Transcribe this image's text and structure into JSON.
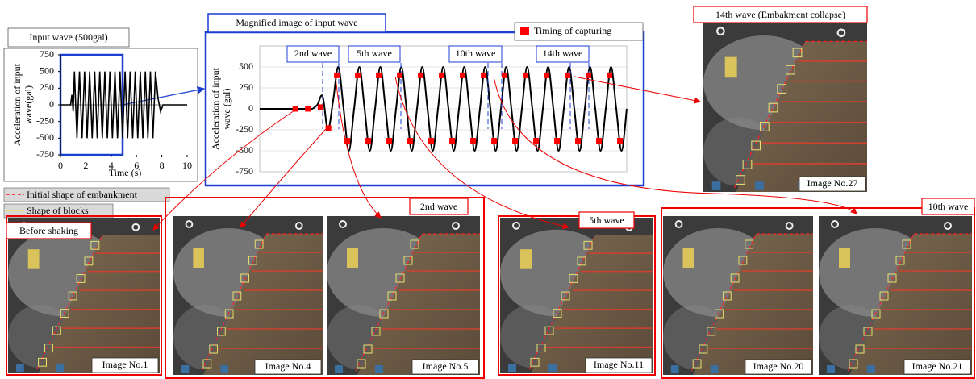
{
  "input_chart": {
    "type": "line",
    "title": "Input wave (500gal)",
    "xlabel": "Time (s)",
    "ylabel": [
      "Acceleration of input",
      "wave(gal)"
    ],
    "xlim": [
      0,
      10
    ],
    "xticks": [
      0,
      2,
      4,
      6,
      8,
      10
    ],
    "ylim": [
      -750,
      750
    ],
    "yticks": [
      -750,
      -500,
      -250,
      0,
      250,
      500,
      750
    ],
    "color": "#000000",
    "x": [
      0,
      0.8,
      0.9,
      1.0,
      1.1,
      1.3,
      1.5,
      1.7,
      1.9,
      2.1,
      2.3,
      2.5,
      2.7,
      2.9,
      3.1,
      3.3,
      3.5,
      3.7,
      3.9,
      4.1,
      4.3,
      4.5,
      4.7,
      4.9,
      5.1,
      5.3,
      5.5,
      5.7,
      5.9,
      6.1,
      6.3,
      6.5,
      6.7,
      6.9,
      7.1,
      7.3,
      7.5,
      7.7,
      7.9,
      8.1,
      10
    ],
    "values": [
      0,
      0,
      150,
      -100,
      500,
      -500,
      500,
      -500,
      500,
      -500,
      500,
      -500,
      500,
      -500,
      500,
      -500,
      500,
      -500,
      500,
      -500,
      500,
      -500,
      500,
      -500,
      500,
      -500,
      500,
      -500,
      500,
      -500,
      500,
      -500,
      500,
      -500,
      500,
      -500,
      500,
      100,
      -100,
      0,
      0
    ]
  },
  "magnified_chart": {
    "type": "line",
    "title": "Magnified image of input wave",
    "ylabel": [
      "Acceleration of input",
      "wave (gal)"
    ],
    "ylim": [
      -750,
      750
    ],
    "yticks": [
      -750,
      -500,
      -250,
      0,
      250,
      500
    ],
    "color": "#000000",
    "values": [
      0,
      0,
      0,
      0,
      0,
      0,
      0,
      0,
      0,
      0,
      0,
      50,
      150,
      -250,
      100,
      500,
      0,
      -500,
      0,
      500,
      0,
      -500,
      0,
      500,
      0,
      -500,
      0,
      500,
      0,
      -500,
      0,
      500,
      0,
      -500,
      0,
      500,
      0,
      -500,
      0,
      500,
      0,
      -500,
      0,
      500,
      0,
      -500,
      0,
      500,
      0,
      -500,
      0,
      500,
      0,
      -500,
      0,
      500,
      0,
      -500,
      0,
      500,
      0,
      -500,
      0,
      500,
      0,
      -500,
      0,
      500,
      0,
      -500,
      0
    ],
    "captures": {
      "name": "Timing of capturing",
      "color": "#ff0000",
      "x": [
        6.8,
        9.2,
        11.6,
        13.1,
        14.7,
        16.7,
        18.7,
        20.7,
        22.7,
        24.7,
        26.7,
        28.7,
        30.7,
        32.7,
        34.7,
        36.7,
        38.7,
        40.7,
        42.7,
        44.7,
        46.7,
        48.7,
        50.7,
        52.7,
        54.7,
        56.7,
        58.7,
        60.7,
        62.7,
        64.7,
        66.7,
        68.7
      ],
      "values": [
        0,
        0,
        20,
        -230,
        400,
        -380,
        400,
        -380,
        400,
        -380,
        400,
        -380,
        400,
        -380,
        400,
        -380,
        400,
        -380,
        400,
        -380,
        400,
        -380,
        400,
        -380,
        400,
        -380,
        400,
        -380,
        400,
        -380,
        400,
        -380
      ]
    },
    "wave_labels": [
      "2nd wave",
      "5th wave",
      "10th wave",
      "14th wave"
    ]
  },
  "legend": [
    "Initial shape of embankment",
    "Shape of blocks"
  ],
  "panels": [
    {
      "caption": "Before shaking",
      "images": [
        "Image No.1"
      ]
    },
    {
      "caption": "2nd wave",
      "images": [
        "Image No.4",
        "Image No.5"
      ]
    },
    {
      "caption": "5th wave",
      "images": [
        "Image No.11"
      ]
    },
    {
      "caption": "10th wave",
      "images": [
        "Image No.20",
        "Image No.21"
      ]
    },
    {
      "caption": "14th wave (Embakment collapse)",
      "images": [
        "Image No.27"
      ]
    }
  ]
}
